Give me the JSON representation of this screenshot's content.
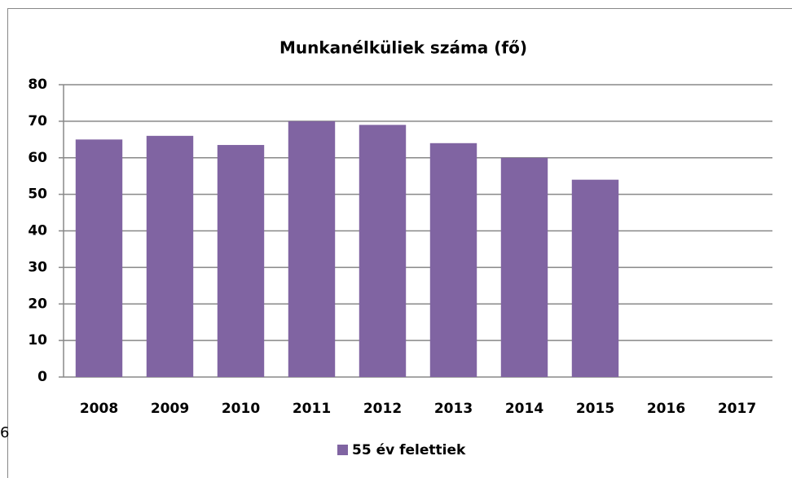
{
  "chart_data": {
    "type": "bar",
    "title": "Munkanélküliek száma (fő)",
    "categories": [
      "2008",
      "2009",
      "2010",
      "2011",
      "2012",
      "2013",
      "2014",
      "2015",
      "2016",
      "2017"
    ],
    "series": [
      {
        "name": "55 év felettiek",
        "color": "#8064a2",
        "values": [
          65,
          66,
          63.5,
          70,
          69,
          64,
          60,
          54,
          null,
          null
        ]
      }
    ],
    "ylim": [
      0,
      80
    ],
    "yticks": [
      0,
      10,
      20,
      30,
      40,
      50,
      60,
      70,
      80
    ],
    "grid": true,
    "legend": "bottom"
  },
  "page_fragment": "6"
}
